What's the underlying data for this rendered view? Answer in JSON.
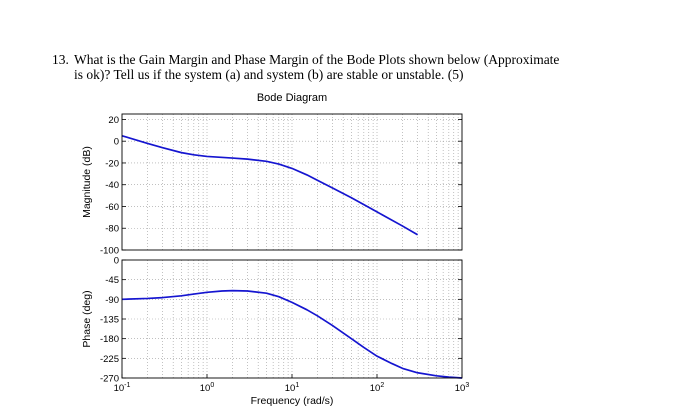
{
  "question": {
    "number": "13.",
    "line1": "What is the Gain Margin and Phase Margin of the Bode Plots shown below (Approximate",
    "line2": "is ok)? Tell us if the system (a) and system (b) are stable or unstable. (5)"
  },
  "chart_data": [
    {
      "type": "line",
      "title": "Bode Diagram",
      "xlabel": "",
      "ylabel": "Magnitude (dB)",
      "x_scale": "log",
      "xlim": [
        0.1,
        1000
      ],
      "ylim": [
        -100,
        25
      ],
      "y_ticks": [
        20,
        0,
        -20,
        -40,
        -60,
        -80,
        -100
      ],
      "y_tick_labels": [
        "20",
        "0",
        "-20",
        "-40",
        "-60",
        "-80",
        "-100"
      ],
      "grid": true,
      "series": [
        {
          "color": "#1515d0",
          "x": [
            0.1,
            0.2,
            0.3,
            0.5,
            0.7,
            1,
            2,
            3,
            5,
            7,
            10,
            15,
            20,
            30,
            50,
            100,
            200,
            300
          ],
          "y": [
            5,
            -2,
            -6,
            -10.5,
            -12.5,
            -14,
            -15.5,
            -16.5,
            -18.5,
            -21,
            -25,
            -31,
            -36,
            -43,
            -52,
            -65,
            -78,
            -86
          ]
        }
      ]
    },
    {
      "type": "line",
      "title": "",
      "xlabel": "Frequency (rad/s)",
      "ylabel": "Phase (deg)",
      "x_scale": "log",
      "xlim": [
        0.1,
        1000
      ],
      "ylim": [
        -270,
        0
      ],
      "y_ticks": [
        0,
        -45,
        -90,
        -135,
        -180,
        -225,
        -270
      ],
      "y_tick_labels": [
        "0",
        "-45",
        "-90",
        "-135",
        "-180",
        "-225",
        "-270"
      ],
      "x_ticks": [
        0.1,
        1,
        10,
        100,
        1000
      ],
      "x_tick_labels": [
        {
          "base": "10",
          "exp": "-1"
        },
        {
          "base": "10",
          "exp": "0"
        },
        {
          "base": "10",
          "exp": "1"
        },
        {
          "base": "10",
          "exp": "2"
        },
        {
          "base": "10",
          "exp": "3"
        }
      ],
      "grid": true,
      "series": [
        {
          "color": "#1515d0",
          "x": [
            0.1,
            0.2,
            0.3,
            0.5,
            0.7,
            1,
            1.5,
            2,
            3,
            5,
            7,
            10,
            15,
            20,
            30,
            50,
            70,
            100,
            150,
            200,
            300,
            500,
            700,
            1000
          ],
          "y": [
            -90,
            -88,
            -86,
            -82,
            -78,
            -74,
            -71,
            -70,
            -71,
            -76,
            -84,
            -97,
            -114,
            -128,
            -150,
            -180,
            -200,
            -220,
            -237,
            -248,
            -258,
            -265,
            -268,
            -270
          ]
        }
      ]
    }
  ]
}
